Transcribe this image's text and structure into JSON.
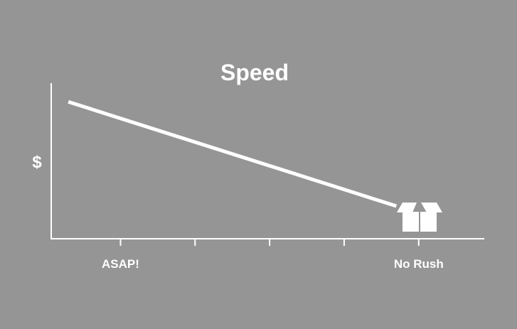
{
  "chart_data": {
    "type": "line",
    "title": "Speed",
    "ylabel": "$",
    "xlabel": "",
    "x_ticks": 5,
    "tick_labels": [
      {
        "tick": 0,
        "label": "ASAP!"
      },
      {
        "tick": 4,
        "label": "No Rush"
      }
    ],
    "series": [
      {
        "points": [
          [
            -0.7,
            0.88
          ],
          [
            3.7,
            0.21
          ]
        ]
      }
    ],
    "xlim": [
      -0.93,
      4.88
    ],
    "ylim": [
      0,
      1
    ],
    "grid": false,
    "colors": {
      "background": "#959595",
      "foreground": "#ffffff"
    },
    "endpoint_icon": "open-box-icon"
  }
}
